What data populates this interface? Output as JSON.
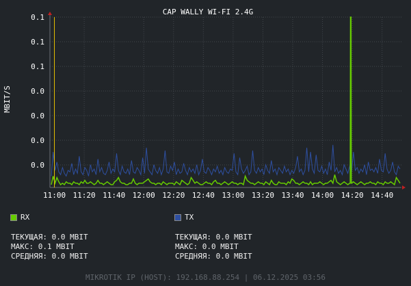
{
  "chart_data": {
    "type": "line",
    "title": "CAP WALLY WI-FI 2.4G",
    "ylabel": "MBIT/S",
    "xlabel": "",
    "y_tick_labels": [
      "0.1",
      "0.1",
      "0.1",
      "0.0",
      "0.0",
      "0.0",
      "0.0"
    ],
    "x_tick_labels": [
      "11:00",
      "11:20",
      "11:40",
      "12:00",
      "12:20",
      "12:40",
      "13:00",
      "13:20",
      "13:40",
      "14:00",
      "14:20",
      "14:40"
    ],
    "x_range": [
      "10:57",
      "14:53"
    ],
    "ylim": [
      0,
      0.12
    ],
    "grid": true,
    "series": [
      {
        "name": "RX",
        "color": "#66cc00",
        "values": [
          0.002,
          0.008,
          0.003,
          0.007,
          0.004,
          0.002,
          0.003,
          0.002,
          0.004,
          0.003,
          0.003,
          0.002,
          0.004,
          0.003,
          0.003,
          0.002,
          0.004,
          0.003,
          0.005,
          0.003,
          0.003,
          0.004,
          0.003,
          0.002,
          0.003,
          0.005,
          0.003,
          0.003,
          0.002,
          0.003,
          0.004,
          0.003,
          0.002,
          0.002,
          0.004,
          0.005,
          0.007,
          0.004,
          0.003,
          0.003,
          0.002,
          0.002,
          0.003,
          0.003,
          0.006,
          0.003,
          0.002,
          0.003,
          0.003,
          0.003,
          0.004,
          0.005,
          0.006,
          0.004,
          0.003,
          0.003,
          0.002,
          0.003,
          0.003,
          0.002,
          0.004,
          0.003,
          0.002,
          0.003,
          0.003,
          0.003,
          0.002,
          0.004,
          0.003,
          0.002,
          0.005,
          0.004,
          0.003,
          0.002,
          0.003,
          0.007,
          0.005,
          0.003,
          0.004,
          0.003,
          0.002,
          0.002,
          0.003,
          0.004,
          0.003,
          0.003,
          0.002,
          0.004,
          0.005,
          0.003,
          0.003,
          0.002,
          0.003,
          0.004,
          0.003,
          0.002,
          0.003,
          0.004,
          0.003,
          0.003,
          0.002,
          0.003,
          0.003,
          0.002,
          0.008,
          0.005,
          0.004,
          0.003,
          0.003,
          0.002,
          0.003,
          0.004,
          0.003,
          0.003,
          0.002,
          0.004,
          0.003,
          0.002,
          0.005,
          0.003,
          0.002,
          0.002,
          0.004,
          0.003,
          0.003,
          0.003,
          0.002,
          0.004,
          0.003,
          0.006,
          0.005,
          0.003,
          0.003,
          0.002,
          0.003,
          0.004,
          0.003,
          0.003,
          0.002,
          0.004,
          0.002,
          0.003,
          0.003,
          0.003,
          0.004,
          0.003,
          0.002,
          0.003,
          0.003,
          0.004,
          0.005,
          0.003,
          0.009,
          0.004,
          0.003,
          0.002,
          0.003,
          0.004,
          0.003,
          0.002,
          0.003,
          0.003,
          0.004,
          0.003,
          0.002,
          0.003,
          0.004,
          0.003,
          0.002,
          0.003,
          0.003,
          0.004,
          0.003,
          0.003,
          0.002,
          0.004,
          0.003,
          0.003,
          0.002,
          0.004,
          0.003,
          0.003,
          0.004,
          0.003,
          0.002,
          0.007,
          0.005,
          0.003
        ]
      },
      {
        "name": "TX",
        "color": "#2e4fa0",
        "values": [
          0.008,
          0.025,
          0.012,
          0.018,
          0.011,
          0.009,
          0.014,
          0.01,
          0.008,
          0.012,
          0.011,
          0.017,
          0.009,
          0.013,
          0.01,
          0.022,
          0.011,
          0.009,
          0.014,
          0.012,
          0.008,
          0.016,
          0.011,
          0.013,
          0.009,
          0.02,
          0.011,
          0.014,
          0.01,
          0.009,
          0.012,
          0.018,
          0.01,
          0.013,
          0.011,
          0.024,
          0.012,
          0.009,
          0.015,
          0.011,
          0.01,
          0.013,
          0.009,
          0.019,
          0.011,
          0.01,
          0.014,
          0.012,
          0.009,
          0.021,
          0.01,
          0.028,
          0.013,
          0.011,
          0.009,
          0.016,
          0.012,
          0.01,
          0.014,
          0.009,
          0.013,
          0.026,
          0.011,
          0.01,
          0.015,
          0.012,
          0.018,
          0.009,
          0.013,
          0.01,
          0.011,
          0.017,
          0.012,
          0.009,
          0.014,
          0.011,
          0.013,
          0.01,
          0.016,
          0.009,
          0.012,
          0.02,
          0.011,
          0.01,
          0.014,
          0.012,
          0.009,
          0.013,
          0.011,
          0.015,
          0.01,
          0.012,
          0.009,
          0.014,
          0.011,
          0.01,
          0.013,
          0.012,
          0.024,
          0.011,
          0.009,
          0.021,
          0.013,
          0.01,
          0.012,
          0.015,
          0.009,
          0.011,
          0.026,
          0.012,
          0.01,
          0.014,
          0.011,
          0.013,
          0.009,
          0.016,
          0.012,
          0.01,
          0.019,
          0.011,
          0.013,
          0.009,
          0.014,
          0.012,
          0.01,
          0.015,
          0.011,
          0.013,
          0.009,
          0.012,
          0.01,
          0.014,
          0.022,
          0.011,
          0.013,
          0.009,
          0.012,
          0.028,
          0.011,
          0.025,
          0.013,
          0.01,
          0.023,
          0.012,
          0.011,
          0.015,
          0.01,
          0.013,
          0.009,
          0.018,
          0.012,
          0.03,
          0.011,
          0.014,
          0.01,
          0.012,
          0.009,
          0.016,
          0.013,
          0.01,
          0.015,
          0.011,
          0.025,
          0.012,
          0.014,
          0.01,
          0.013,
          0.011,
          0.016,
          0.009,
          0.018,
          0.012,
          0.013,
          0.011,
          0.014,
          0.01,
          0.02,
          0.012,
          0.011,
          0.024,
          0.013,
          0.01,
          0.012,
          0.018,
          0.011,
          0.009,
          0.015,
          0.013
        ]
      }
    ],
    "rx_spike": {
      "x": "14:19",
      "value": 0.12
    },
    "now_marker_x": "11:00"
  },
  "colors": {
    "background": "#212529",
    "grid": "#41464c",
    "rx": "#66cc00",
    "tx": "#2e4fa0",
    "marker": "#e8c200",
    "axis_arrow": "#c02020"
  },
  "legend": {
    "rx_label": "RX",
    "tx_label": "TX"
  },
  "stats": {
    "rx": {
      "current": "ТЕКУЩАЯ: 0.0 MBIT",
      "max": "МАКС: 0.1 MBIT",
      "avg": "СРЕДНЯЯ: 0.0 MBIT"
    },
    "tx": {
      "current": "ТЕКУЩАЯ: 0.0 MBIT",
      "max": "МАКС: 0.0 MBIT",
      "avg": "СРЕДНЯЯ: 0.0 MBIT"
    }
  },
  "footer": "MIKROTIK IP (HOST): 192.168.88.254 | 06.12.2025 03:56"
}
